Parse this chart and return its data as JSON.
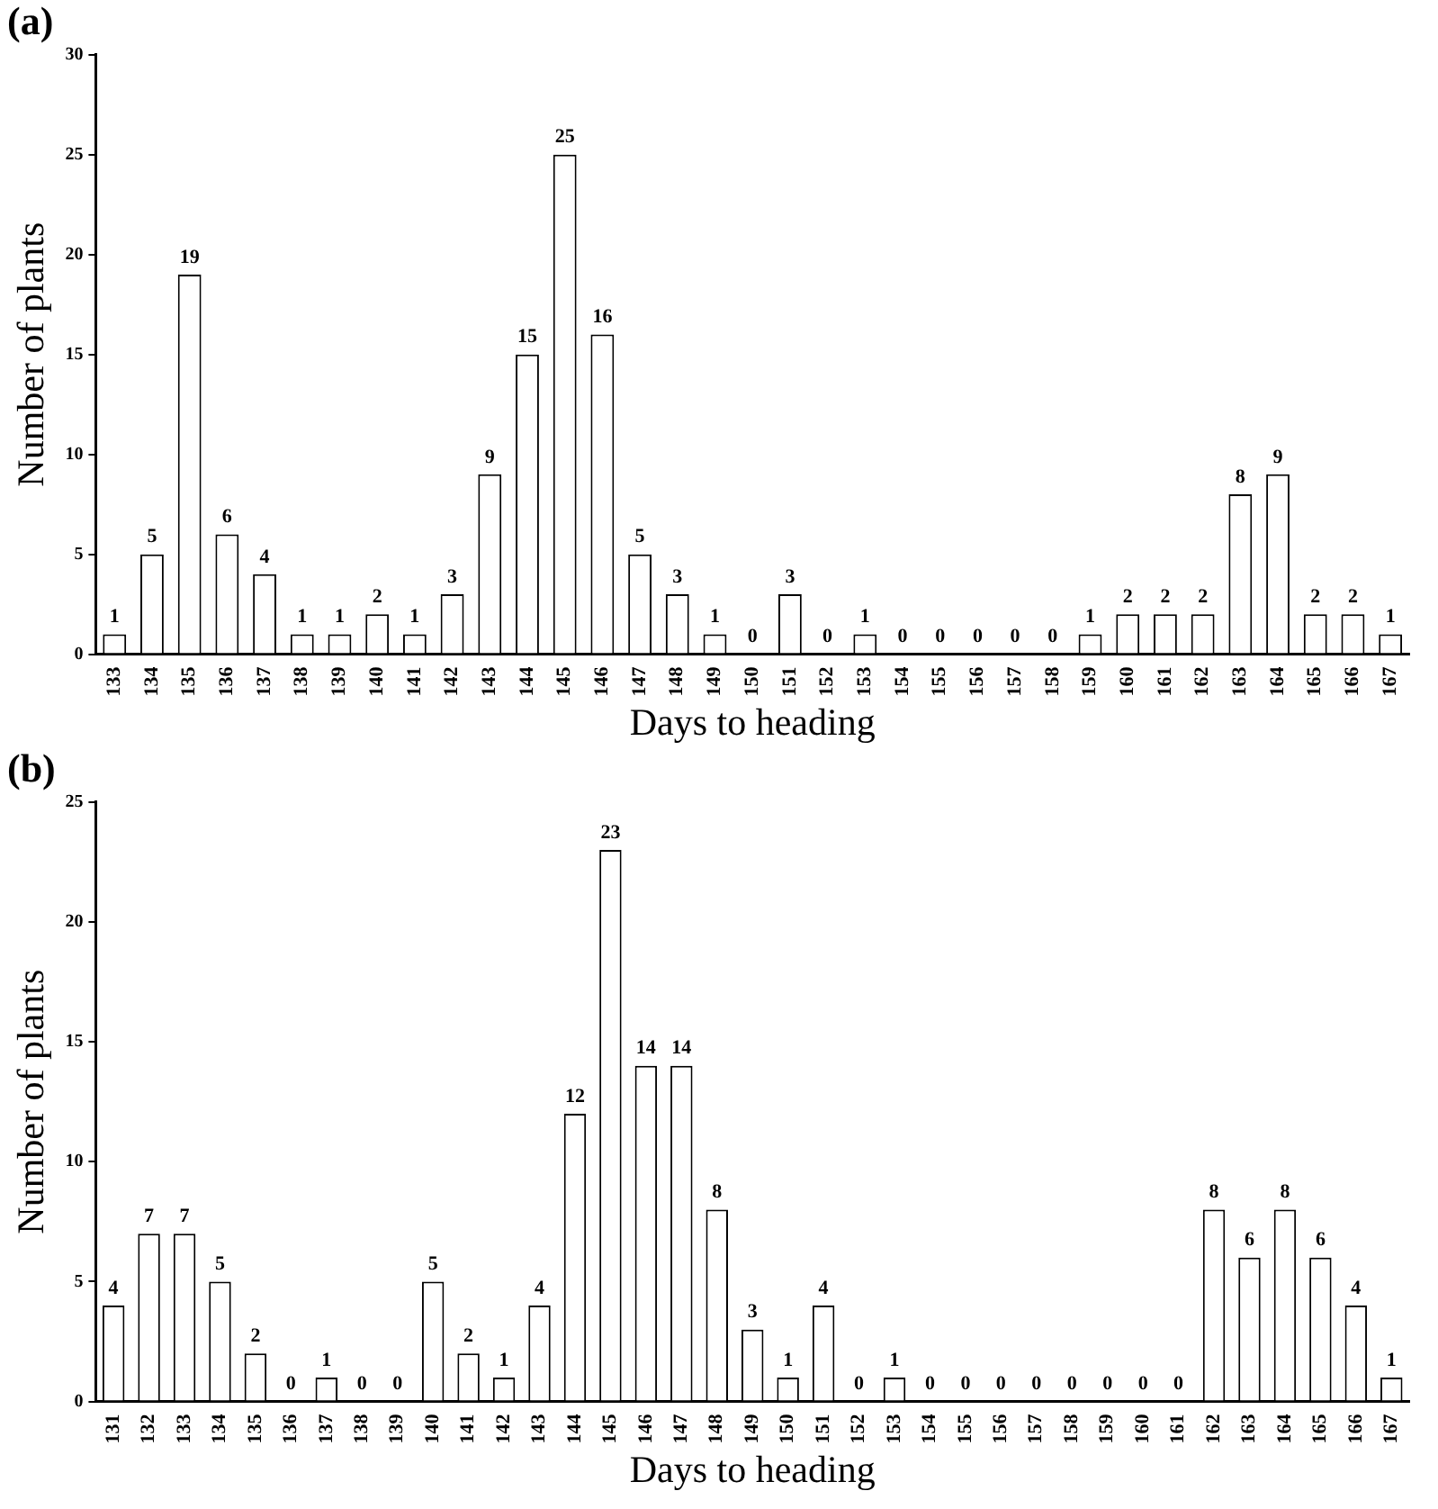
{
  "chart_data": [
    {
      "type": "bar",
      "title": "(a)",
      "xlabel": "Days to heading",
      "ylabel": "Number of plants",
      "categories": [
        "133",
        "134",
        "135",
        "136",
        "137",
        "138",
        "139",
        "140",
        "141",
        "142",
        "143",
        "144",
        "145",
        "146",
        "147",
        "148",
        "149",
        "150",
        "151",
        "152",
        "153",
        "154",
        "155",
        "156",
        "157",
        "158",
        "159",
        "160",
        "161",
        "162",
        "163",
        "164",
        "165",
        "166",
        "167"
      ],
      "values": [
        1,
        5,
        19,
        6,
        4,
        1,
        1,
        2,
        1,
        3,
        9,
        15,
        25,
        16,
        5,
        3,
        1,
        0,
        3,
        0,
        1,
        0,
        0,
        0,
        0,
        0,
        1,
        2,
        2,
        2,
        8,
        9,
        2,
        2,
        1
      ],
      "color": "#ffffff",
      "ylim": [
        0,
        30
      ],
      "yticks": [
        0,
        5,
        10,
        15,
        20,
        25,
        30
      ],
      "grid": false,
      "legend": false,
      "data_labels": true
    },
    {
      "type": "bar",
      "title": "(b)",
      "xlabel": "Days to heading",
      "ylabel": "Number of plants",
      "categories": [
        "131",
        "132",
        "133",
        "134",
        "135",
        "136",
        "137",
        "138",
        "139",
        "140",
        "141",
        "142",
        "143",
        "144",
        "145",
        "146",
        "147",
        "148",
        "149",
        "150",
        "151",
        "152",
        "153",
        "154",
        "155",
        "156",
        "157",
        "158",
        "159",
        "160",
        "161",
        "162",
        "163",
        "164",
        "165",
        "166",
        "167"
      ],
      "values": [
        4,
        7,
        7,
        5,
        2,
        0,
        1,
        0,
        0,
        5,
        2,
        1,
        4,
        12,
        23,
        14,
        14,
        8,
        3,
        1,
        4,
        0,
        1,
        0,
        0,
        0,
        0,
        0,
        0,
        0,
        0,
        8,
        6,
        8,
        6,
        4,
        1
      ],
      "color": "#ffffff",
      "ylim": [
        0,
        25
      ],
      "yticks": [
        0,
        5,
        10,
        15,
        20,
        25
      ],
      "grid": false,
      "legend": false,
      "data_labels": true
    }
  ]
}
